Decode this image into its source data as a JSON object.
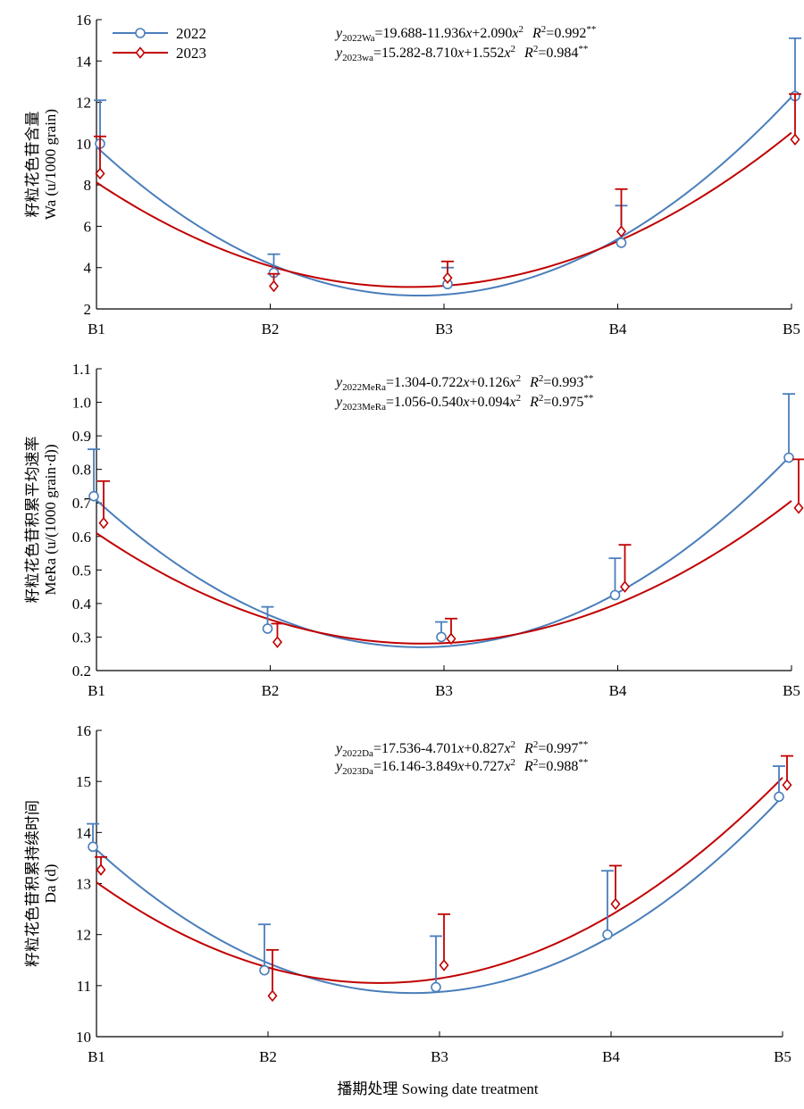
{
  "figure": {
    "xlabel": "播期处理 Sowing date treatment"
  },
  "legend": [
    {
      "label": "2022",
      "color": "#4a7ebb",
      "marker": "circle"
    },
    {
      "label": "2023",
      "color": "#c00000",
      "marker": "diamond"
    }
  ],
  "chart_data": [
    {
      "type": "scatter",
      "categories": [
        "B1",
        "B2",
        "B3",
        "B4",
        "B5"
      ],
      "ylabel_cn": "籽粒花色苷含量",
      "ylabel_en": "Wa (u/1000 grain)",
      "ylim": [
        2,
        16
      ],
      "yticks": [
        2,
        4,
        6,
        8,
        10,
        12,
        14,
        16
      ],
      "ytick_labels": [
        "2",
        "4",
        "6",
        "8",
        "10",
        "12",
        "14",
        "16"
      ],
      "series": [
        {
          "name": "2022",
          "values": [
            10.0,
            3.75,
            3.2,
            5.2,
            12.3
          ],
          "errors": [
            2.1,
            0.9,
            0.8,
            1.8,
            2.8
          ],
          "fit": [
            19.688,
            -11.936,
            2.09
          ]
        },
        {
          "name": "2023",
          "values": [
            8.55,
            3.1,
            3.5,
            5.75,
            10.2
          ],
          "errors": [
            1.8,
            0.6,
            0.8,
            2.05,
            2.2
          ],
          "fit": [
            15.282,
            -8.71,
            1.552
          ]
        }
      ],
      "equations": [
        {
          "y": "y",
          "sub": "2022Wa",
          "rhs": "=19.688-11.936",
          "x1": "x",
          "mid": "+2.090",
          "x2": "x",
          "sup2": "2",
          "R": "R",
          "r2": "=0.992",
          "stars": "**"
        },
        {
          "y": "y",
          "sub": "2023wa",
          "rhs": "=15.282-8.710",
          "x1": "x",
          "mid": "+1.552",
          "x2": "x",
          "sup2": "2",
          "R": "R",
          "r2": "=0.984",
          "stars": "**"
        }
      ],
      "legend_shown": true
    },
    {
      "type": "scatter",
      "categories": [
        "B1",
        "B2",
        "B3",
        "B4",
        "B5"
      ],
      "ylabel_cn": "籽粒花色苷积累平均速率",
      "ylabel_en": "MeRa (u/(1000 grain·d))",
      "ylim": [
        0.2,
        1.1
      ],
      "yticks": [
        0.2,
        0.3,
        0.4,
        0.5,
        0.6,
        0.7,
        0.8,
        0.9,
        1.0,
        1.1
      ],
      "ytick_labels": [
        "0.2",
        "0.3",
        "0.4",
        "0.5",
        "0.6",
        "0.7",
        "0.8",
        "0.9",
        "1.0",
        "1.1"
      ],
      "series": [
        {
          "name": "2022",
          "values": [
            0.72,
            0.325,
            0.3,
            0.425,
            0.835
          ],
          "errors": [
            0.14,
            0.065,
            0.045,
            0.11,
            0.19
          ],
          "fit": [
            1.304,
            -0.722,
            0.126
          ]
        },
        {
          "name": "2023",
          "values": [
            0.64,
            0.285,
            0.295,
            0.45,
            0.685
          ],
          "errors": [
            0.125,
            0.055,
            0.06,
            0.125,
            0.145
          ],
          "fit": [
            1.056,
            -0.54,
            0.094
          ]
        }
      ],
      "equations": [
        {
          "y": "y",
          "sub": "2022MeRa",
          "rhs": "=1.304-0.722",
          "x1": "x",
          "mid": "+0.126",
          "x2": "x",
          "sup2": "2",
          "R": "R",
          "r2": "=0.993",
          "stars": "**"
        },
        {
          "y": "y",
          "sub": "2023MeRa",
          "rhs": "=1.056-0.540",
          "x1": "x",
          "mid": "+0.094",
          "x2": "x",
          "sup2": "2",
          "R": "R",
          "r2": "=0.975",
          "stars": "**"
        }
      ],
      "legend_shown": false
    },
    {
      "type": "scatter",
      "categories": [
        "B1",
        "B2",
        "B3",
        "B4",
        "B5"
      ],
      "ylabel_cn": "籽粒花色苷积累持续时间",
      "ylabel_en": "Da (d)",
      "ylim": [
        10,
        16
      ],
      "yticks": [
        10,
        11,
        12,
        13,
        14,
        15,
        16
      ],
      "ytick_labels": [
        "10",
        "11",
        "12",
        "13",
        "14",
        "15",
        "16"
      ],
      "series": [
        {
          "name": "2022",
          "values": [
            13.72,
            11.3,
            10.97,
            12.0,
            14.7
          ],
          "errors": [
            0.45,
            0.9,
            1.0,
            1.25,
            0.6
          ],
          "fit": [
            17.536,
            -4.701,
            0.827
          ]
        },
        {
          "name": "2023",
          "values": [
            13.27,
            10.8,
            11.4,
            12.6,
            14.93
          ],
          "errors": [
            0.25,
            0.9,
            1.0,
            0.75,
            0.57
          ],
          "fit": [
            16.146,
            -3.849,
            0.727
          ]
        }
      ],
      "equations": [
        {
          "y": "y",
          "sub": "2022Da",
          "rhs": "=17.536-4.701",
          "x1": "x",
          "mid": "+0.827",
          "x2": "x",
          "sup2": "2",
          "R": "R",
          "r2": "=0.997",
          "stars": "**"
        },
        {
          "y": "y",
          "sub": "2023Da",
          "rhs": "=16.146-3.849",
          "x1": "x",
          "mid": "+0.727",
          "x2": "x",
          "sup2": "2",
          "R": "R",
          "r2": "=0.988",
          "stars": "**"
        }
      ],
      "legend_shown": false
    }
  ]
}
